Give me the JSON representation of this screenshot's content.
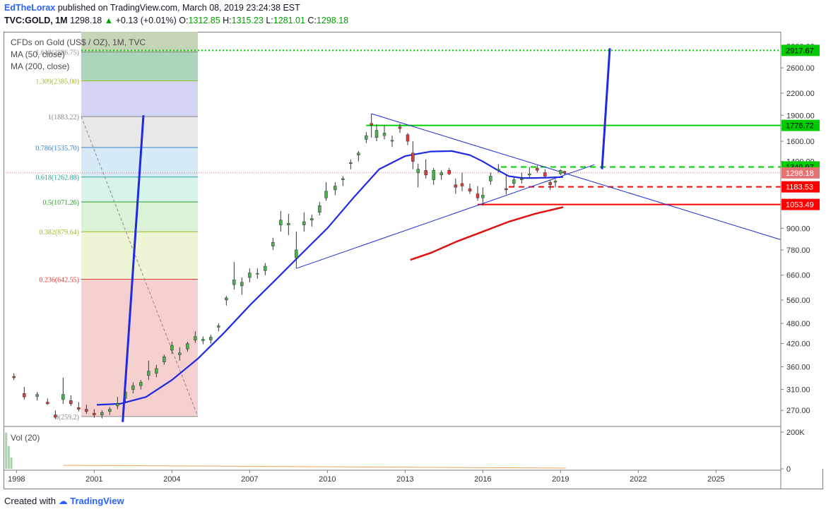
{
  "header": {
    "author": "EdTheLorax",
    "published_text": "published on TradingView.com, March 08, 2019 23:24:38 EST",
    "symbol": "TVC:GOLD, 1M",
    "last": "1298.18",
    "change": "+0.13 (+0.01%)",
    "open_label": "O:",
    "open": "1312.85",
    "high_label": "H:",
    "high": "1315.23",
    "low_label": "L:",
    "low": "1281.01",
    "close_label": "C:",
    "close": "1298.18"
  },
  "legend": {
    "title": "CFDs on Gold (US$ / OZ), 1M, TVC",
    "ma50": "MA (50, close)",
    "ma200": "MA (200, close)",
    "volume": "Vol (20)"
  },
  "footer": {
    "prefix": "Created with",
    "brand": "TradingView"
  },
  "colors": {
    "up": "#4caf50",
    "down": "#e53935",
    "ma": "#1e2be0",
    "ma200": "#e01010",
    "trendline": "#1e2bd0",
    "support": "#ff0000",
    "resistance": "#00cc00"
  },
  "chart_data": {
    "type": "candlestick",
    "scale": "log",
    "ylim": [
      245,
      3300
    ],
    "xlim": [
      "1997-07",
      "2027-06"
    ],
    "x_ticks": [
      "1998",
      "2001",
      "2004",
      "2007",
      "2010",
      "2013",
      "2016",
      "2019",
      "2022",
      "2025"
    ],
    "y_ticks": [
      "270.00",
      "310.00",
      "360.00",
      "420.00",
      "480.00",
      "560.00",
      "660.00",
      "780.00",
      "900.00",
      "1400.00",
      "1600.00",
      "1900.00",
      "2200.00",
      "2600.00",
      "3000.00"
    ],
    "price_labels": [
      {
        "text": "2917.67",
        "value": 2917.67,
        "color": "#00cc00"
      },
      {
        "text": "1776.72",
        "value": 1776.72,
        "color": "#00cc00"
      },
      {
        "text": "1349.97",
        "value": 1349.97,
        "color": "#00cc00"
      },
      {
        "text": "1298.18",
        "value": 1298.18,
        "color": "#e57373"
      },
      {
        "text": "1183.53",
        "value": 1183.53,
        "color": "#ff0000"
      },
      {
        "text": "1053.49",
        "value": 1053.49,
        "color": "#ff0000"
      }
    ],
    "fib_levels": [
      {
        "ratio": 0,
        "price": 259.2,
        "label": "0(259.2)",
        "label_color": "#888888"
      },
      {
        "ratio": 0.236,
        "price": 642.55,
        "label": "0.236(642.55)",
        "label_color": "#e53935"
      },
      {
        "ratio": 0.382,
        "price": 879.64,
        "label": "0.382(879.64)",
        "label_color": "#9bbb2b"
      },
      {
        "ratio": 0.5,
        "price": 1071.26,
        "label": "0.5(1071.26)",
        "label_color": "#2e9e2e"
      },
      {
        "ratio": 0.618,
        "price": 1262.88,
        "label": "0.618(1262.88)",
        "label_color": "#2aa198"
      },
      {
        "ratio": 0.786,
        "price": 1535.7,
        "label": "0.786(1535.70)",
        "label_color": "#3b82c4"
      },
      {
        "ratio": 1,
        "price": 1883.22,
        "label": "1(1883.22)",
        "label_color": "#888888"
      },
      {
        "ratio": 1.309,
        "price": 2385.0,
        "label": "1.309(2385.00)",
        "label_color": "#9bbb2b"
      },
      {
        "ratio": 1.618,
        "price": 2886.75,
        "label": "1.618(2886.75)",
        "label_color": "#888888"
      }
    ],
    "horizontal_lines": [
      {
        "price": 2917.67,
        "style": "dotted",
        "color": "#00cc00",
        "from": "2000.5"
      },
      {
        "price": 1776.72,
        "style": "solid",
        "color": "#00cc00",
        "from": "2011.5"
      },
      {
        "price": 1349.97,
        "style": "dashed",
        "color": "#00cc00",
        "from": "2016.7"
      },
      {
        "price": 1183.53,
        "style": "dashed",
        "color": "#ff0000",
        "from": "2017.0"
      },
      {
        "price": 1053.49,
        "style": "solid",
        "color": "#ff0000",
        "from": "2015.8"
      }
    ],
    "trend_lines": [
      {
        "from": [
          "2011.7",
          1920
        ],
        "to": [
          "2027.6",
          830
        ]
      },
      {
        "from": [
          "2008.8",
          690
        ],
        "to": [
          "2020.3",
          1370
        ]
      }
    ],
    "arrows": [
      {
        "from": [
          "2002.1",
          250
        ],
        "to": [
          "2002.9",
          1900
        ]
      },
      {
        "from": [
          "2020.6",
          1330
        ],
        "to": [
          "2020.9",
          2960
        ]
      }
    ],
    "ma50": [
      [
        "2001.1",
        280
      ],
      [
        "2002.0",
        282
      ],
      [
        "2003.0",
        295
      ],
      [
        "2004.0",
        330
      ],
      [
        "2005.0",
        380
      ],
      [
        "2006.0",
        450
      ],
      [
        "2007.0",
        540
      ],
      [
        "2008.0",
        640
      ],
      [
        "2009.0",
        760
      ],
      [
        "2010.0",
        900
      ],
      [
        "2011.0",
        1100
      ],
      [
        "2012.0",
        1330
      ],
      [
        "2013.0",
        1450
      ],
      [
        "2014.0",
        1495
      ],
      [
        "2014.8",
        1500
      ],
      [
        "2015.5",
        1460
      ],
      [
        "2016.0",
        1400
      ],
      [
        "2016.5",
        1330
      ],
      [
        "2017.0",
        1270
      ],
      [
        "2017.5",
        1255
      ],
      [
        "2018.0",
        1255
      ],
      [
        "2018.5",
        1258
      ],
      [
        "2019.1",
        1263
      ]
    ],
    "ma200": [
      [
        "2013.2",
        730
      ],
      [
        "2014.0",
        765
      ],
      [
        "2015.0",
        825
      ],
      [
        "2016.0",
        880
      ],
      [
        "2017.0",
        940
      ],
      [
        "2018.0",
        990
      ],
      [
        "2019.1",
        1035
      ]
    ],
    "candles": [
      [
        "1997.9",
        338,
        345,
        330,
        335
      ],
      [
        "1998.3",
        302,
        315,
        290,
        295
      ],
      [
        "1998.8",
        296,
        305,
        288,
        300
      ],
      [
        "1999.2",
        285,
        292,
        280,
        282
      ],
      [
        "1999.5",
        262,
        270,
        255,
        258
      ],
      [
        "1999.8",
        290,
        335,
        282,
        300
      ],
      [
        "2000.1",
        288,
        298,
        278,
        282
      ],
      [
        "2000.4",
        275,
        285,
        268,
        272
      ],
      [
        "2000.7",
        272,
        280,
        264,
        268
      ],
      [
        "2001.0",
        265,
        272,
        257,
        262
      ],
      [
        "2001.3",
        262,
        270,
        256,
        266
      ],
      [
        "2001.6",
        268,
        276,
        262,
        272
      ],
      [
        "2001.9",
        278,
        295,
        272,
        282
      ],
      [
        "2002.2",
        292,
        312,
        285,
        305
      ],
      [
        "2002.5",
        310,
        325,
        302,
        318
      ],
      [
        "2002.8",
        318,
        330,
        310,
        325
      ],
      [
        "2003.1",
        340,
        375,
        330,
        350
      ],
      [
        "2003.4",
        345,
        365,
        336,
        356
      ],
      [
        "2003.7",
        372,
        390,
        365,
        385
      ],
      [
        "2004.0",
        402,
        425,
        392,
        415
      ],
      [
        "2004.3",
        390,
        410,
        375,
        395
      ],
      [
        "2004.6",
        405,
        425,
        398,
        420
      ],
      [
        "2004.9",
        430,
        455,
        422,
        440
      ],
      [
        "2005.2",
        428,
        440,
        418,
        432
      ],
      [
        "2005.5",
        430,
        445,
        420,
        438
      ],
      [
        "2005.8",
        468,
        480,
        455,
        472
      ],
      [
        "2006.1",
        560,
        575,
        540,
        568
      ],
      [
        "2006.4",
        620,
        720,
        600,
        640
      ],
      [
        "2006.7",
        615,
        650,
        580,
        630
      ],
      [
        "2007.0",
        650,
        690,
        630,
        670
      ],
      [
        "2007.3",
        665,
        690,
        645,
        668
      ],
      [
        "2007.6",
        680,
        715,
        660,
        700
      ],
      [
        "2007.9",
        800,
        845,
        780,
        820
      ],
      [
        "2008.2",
        920,
        1010,
        880,
        950
      ],
      [
        "2008.5",
        920,
        990,
        860,
        930
      ],
      [
        "2008.8",
        740,
        880,
        690,
        780
      ],
      [
        "2009.1",
        920,
        1000,
        880,
        940
      ],
      [
        "2009.4",
        950,
        985,
        910,
        960
      ],
      [
        "2009.7",
        1000,
        1070,
        980,
        1045
      ],
      [
        "2009.95",
        1100,
        1220,
        1080,
        1150
      ],
      [
        "2010.3",
        1160,
        1220,
        1120,
        1190
      ],
      [
        "2010.6",
        1240,
        1270,
        1190,
        1250
      ],
      [
        "2010.9",
        1380,
        1420,
        1330,
        1390
      ],
      [
        "2011.2",
        1460,
        1500,
        1400,
        1480
      ],
      [
        "2011.5",
        1620,
        1700,
        1580,
        1660
      ],
      [
        "2011.7",
        1800,
        1920,
        1640,
        1780
      ],
      [
        "2011.9",
        1640,
        1790,
        1600,
        1720
      ],
      [
        "2012.2",
        1660,
        1780,
        1620,
        1690
      ],
      [
        "2012.5",
        1600,
        1660,
        1540,
        1610
      ],
      [
        "2012.8",
        1760,
        1800,
        1690,
        1740
      ],
      [
        "2013.1",
        1670,
        1690,
        1560,
        1600
      ],
      [
        "2013.3",
        1480,
        1600,
        1330,
        1400
      ],
      [
        "2013.5",
        1300,
        1380,
        1180,
        1330
      ],
      [
        "2013.8",
        1320,
        1420,
        1250,
        1280
      ],
      [
        "2014.1",
        1240,
        1340,
        1200,
        1320
      ],
      [
        "2014.4",
        1280,
        1320,
        1240,
        1300
      ],
      [
        "2014.7",
        1320,
        1340,
        1280,
        1290
      ],
      [
        "2014.95",
        1200,
        1250,
        1130,
        1180
      ],
      [
        "2015.2",
        1210,
        1300,
        1150,
        1190
      ],
      [
        "2015.5",
        1170,
        1210,
        1130,
        1150
      ],
      [
        "2015.8",
        1130,
        1190,
        1080,
        1100
      ],
      [
        "2016.0",
        1100,
        1180,
        1045,
        1120
      ],
      [
        "2016.3",
        1230,
        1300,
        1200,
        1270
      ],
      [
        "2016.6",
        1320,
        1375,
        1300,
        1330
      ],
      [
        "2016.9",
        1170,
        1280,
        1125,
        1160
      ],
      [
        "2017.2",
        1210,
        1260,
        1180,
        1240
      ],
      [
        "2017.5",
        1240,
        1300,
        1210,
        1250
      ],
      [
        "2017.8",
        1280,
        1350,
        1260,
        1290
      ],
      [
        "2018.1",
        1340,
        1365,
        1300,
        1320
      ],
      [
        "2018.4",
        1300,
        1330,
        1250,
        1270
      ],
      [
        "2018.6",
        1220,
        1240,
        1160,
        1200
      ],
      [
        "2018.8",
        1220,
        1245,
        1180,
        1230
      ],
      [
        "2019.0",
        1290,
        1330,
        1280,
        1320
      ],
      [
        "2019.15",
        1312,
        1315,
        1281,
        1298
      ]
    ],
    "volume": {
      "labels": [
        "200K",
        "0"
      ],
      "bars": [
        [
          "1997.6",
          0.95
        ],
        [
          "1997.7",
          0.6
        ],
        [
          "1997.8",
          0.3
        ]
      ],
      "ma_line": "flat near zero"
    }
  }
}
